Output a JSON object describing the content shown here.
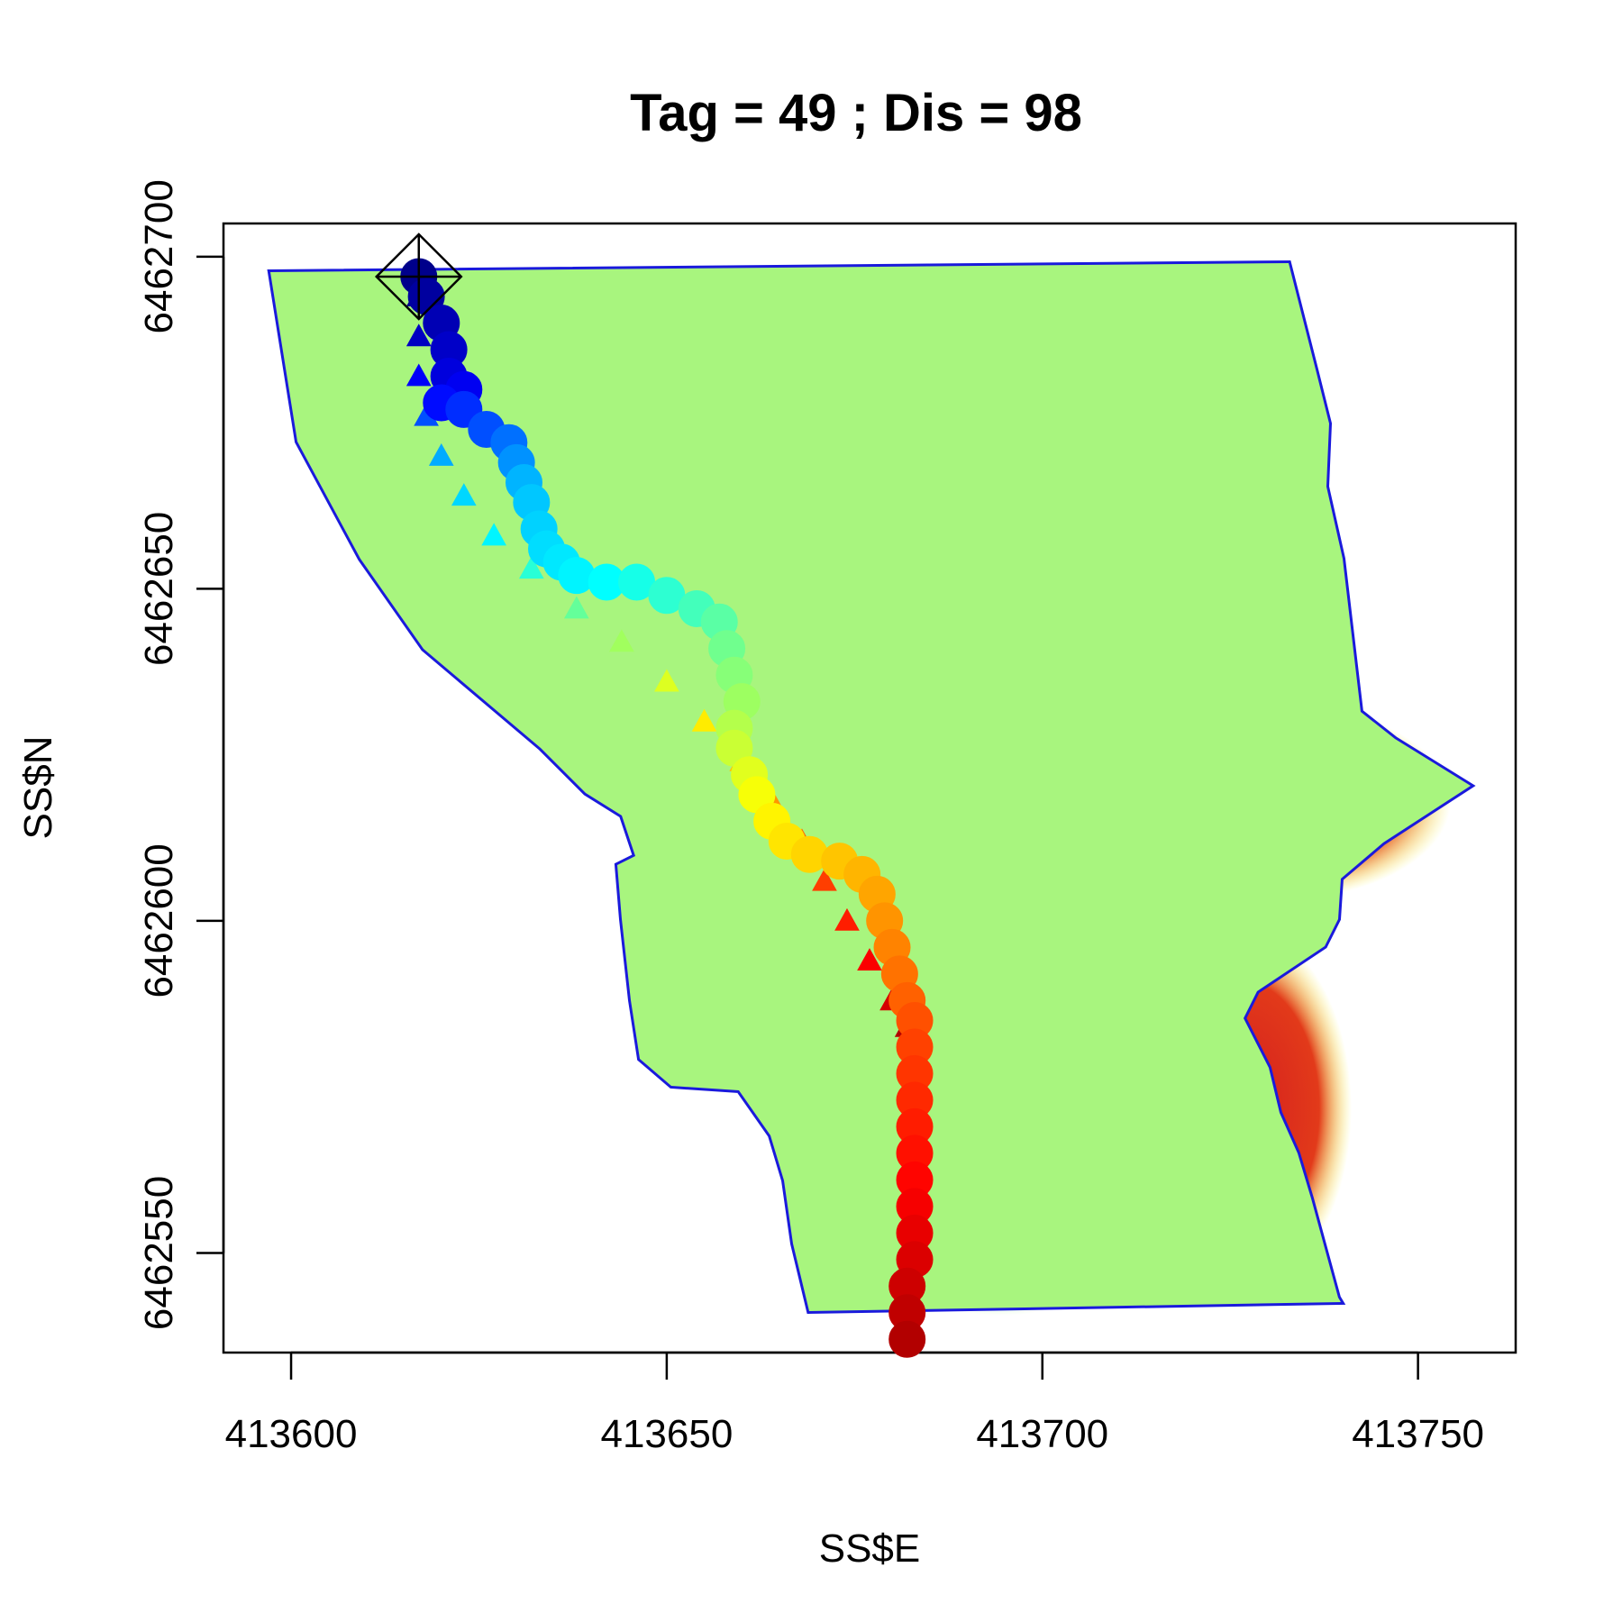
{
  "chart_data": {
    "type": "scatter",
    "title": "Tag = 49 ; Dis = 98",
    "xlabel": "SS$E",
    "ylabel": "SS$N",
    "xlim": [
      413591,
      413763
    ],
    "ylim": [
      6462535,
      6462705
    ],
    "x_ticks": [
      413600,
      413650,
      413700,
      413750
    ],
    "x_tick_labels": [
      "413600",
      "413650",
      "413700",
      "413750"
    ],
    "y_ticks": [
      6462550,
      6462600,
      6462650,
      6462700
    ],
    "y_tick_labels": [
      "6462550",
      "6462600",
      "6462650",
      "6462700"
    ],
    "colormap": [
      "#00008b",
      "#0000ff",
      "#00bfff",
      "#00ffff",
      "#7fff7f",
      "#ffff00",
      "#ffa500",
      "#ff4500",
      "#ff0000",
      "#b20000"
    ],
    "background_field": {
      "description_colors": "depth-colored raster (blue low, red high)",
      "colors": {
        "blue": "#1a1adc",
        "cyan": "#39e6f0",
        "green": "#9cf58c",
        "yellow": "#f7f727",
        "orange": "#f5911e",
        "red": "#d41e1e"
      }
    },
    "series": [
      {
        "marker": "circle",
        "values": [
          [
            413617,
            6462697
          ],
          [
            413618,
            6462694
          ],
          [
            413620,
            6462690
          ],
          [
            413621,
            6462686
          ],
          [
            413621,
            6462682
          ],
          [
            413623,
            6462680
          ],
          [
            413620,
            6462678
          ],
          [
            413623,
            6462677
          ],
          [
            413626,
            6462674
          ],
          [
            413629,
            6462672
          ],
          [
            413630,
            6462669
          ],
          [
            413631,
            6462666
          ],
          [
            413632,
            6462663
          ],
          [
            413633,
            6462659
          ],
          [
            413634,
            6462656
          ],
          [
            413636,
            6462654
          ],
          [
            413638,
            6462652
          ],
          [
            413642,
            6462651
          ],
          [
            413646,
            6462651
          ],
          [
            413650,
            6462649
          ],
          [
            413654,
            6462647
          ],
          [
            413657,
            6462645
          ],
          [
            413658,
            6462641
          ],
          [
            413659,
            6462637
          ],
          [
            413660,
            6462633
          ],
          [
            413659,
            6462629
          ],
          [
            413659,
            6462626
          ],
          [
            413661,
            6462622
          ],
          [
            413662,
            6462619
          ],
          [
            413664,
            6462615
          ],
          [
            413666,
            6462612
          ],
          [
            413669,
            6462610
          ],
          [
            413673,
            6462609
          ],
          [
            413676,
            6462607
          ],
          [
            413678,
            6462604
          ],
          [
            413679,
            6462600
          ],
          [
            413680,
            6462596
          ],
          [
            413681,
            6462592
          ],
          [
            413682,
            6462588
          ],
          [
            413683,
            6462585
          ],
          [
            413683,
            6462581
          ],
          [
            413683,
            6462577
          ],
          [
            413683,
            6462573
          ],
          [
            413683,
            6462569
          ],
          [
            413683,
            6462565
          ],
          [
            413683,
            6462561
          ],
          [
            413683,
            6462557
          ],
          [
            413683,
            6462553
          ],
          [
            413683,
            6462549
          ],
          [
            413682,
            6462545
          ],
          [
            413682,
            6462541
          ],
          [
            413682,
            6462537
          ]
        ]
      },
      {
        "marker": "triangle",
        "values": [
          [
            413617,
            6462694
          ],
          [
            413617,
            6462688
          ],
          [
            413617,
            6462682
          ],
          [
            413618,
            6462676
          ],
          [
            413620,
            6462670
          ],
          [
            413623,
            6462664
          ],
          [
            413627,
            6462658
          ],
          [
            413632,
            6462653
          ],
          [
            413638,
            6462647
          ],
          [
            413644,
            6462642
          ],
          [
            413650,
            6462636
          ],
          [
            413655,
            6462630
          ],
          [
            413660,
            6462624
          ],
          [
            413664,
            6462618
          ],
          [
            413668,
            6462612
          ],
          [
            413671,
            6462606
          ],
          [
            413674,
            6462600
          ],
          [
            413677,
            6462594
          ],
          [
            413680,
            6462588
          ],
          [
            413682,
            6462584
          ]
        ]
      }
    ],
    "start_marker": {
      "shape": "diamond-with-cross",
      "x": 413617,
      "y": 6462697
    },
    "grid": false,
    "legend": "none"
  }
}
